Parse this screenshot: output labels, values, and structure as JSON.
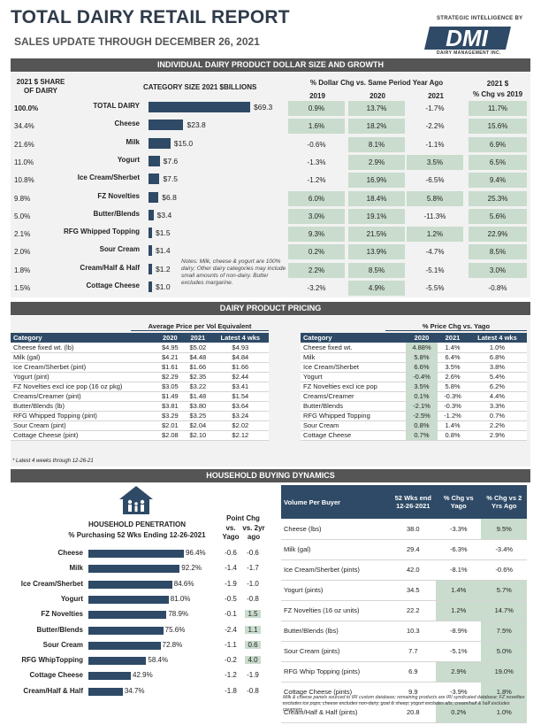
{
  "header": {
    "title": "TOTAL DAIRY RETAIL REPORT",
    "subtitle": "SALES UPDATE THROUGH DECEMBER 26, 2021",
    "logo_top": "STRATEGIC INTELLIGENCE BY",
    "logo_mark": "DMI",
    "logo_bottom": "DAIRY MANAGEMENT INC."
  },
  "section1": {
    "band": "INDIVIDUAL DAIRY PRODUCT DOLLAR SIZE AND GROWTH",
    "share_hdr": [
      "2021 $ SHARE",
      "OF DAIRY"
    ],
    "size_hdr": "CATEGORY SIZE 2021 $BILLIONS",
    "chg_hdr": "% Dollar Chg vs. Same Period Year Ago",
    "years": [
      "2019",
      "2020",
      "2021"
    ],
    "chg19_hdr": [
      "2021 $",
      "% Chg vs 2019"
    ],
    "note": "Notes: Milk, cheese & yogurt are 100% dairy; Other dairy categories may include small amounts of non-dairy. Butter excludes margarine.",
    "rows": [
      {
        "share": "100.0%",
        "name": "TOTAL DAIRY",
        "value": 69.3,
        "label": "$69.3",
        "c19": "0.9%",
        "c20": "13.7%",
        "c21": "-1.7%",
        "c2019": "11.7%",
        "g": [
          1,
          1,
          0,
          1
        ]
      },
      {
        "share": "34.4%",
        "name": "Cheese",
        "value": 23.8,
        "label": "$23.8",
        "c19": "1.6%",
        "c20": "18.2%",
        "c21": "-2.2%",
        "c2019": "15.6%",
        "g": [
          1,
          1,
          0,
          1
        ]
      },
      {
        "share": "21.6%",
        "name": "Milk",
        "value": 15.0,
        "label": "$15.0",
        "c19": "-0.6%",
        "c20": "8.1%",
        "c21": "-1.1%",
        "c2019": "6.9%",
        "g": [
          0,
          1,
          0,
          1
        ]
      },
      {
        "share": "11.0%",
        "name": "Yogurt",
        "value": 7.6,
        "label": "$7.6",
        "c19": "-1.3%",
        "c20": "2.9%",
        "c21": "3.5%",
        "c2019": "6.5%",
        "g": [
          0,
          1,
          1,
          1
        ]
      },
      {
        "share": "10.8%",
        "name": "Ice Cream/Sherbet",
        "value": 7.5,
        "label": "$7.5",
        "c19": "-1.2%",
        "c20": "16.9%",
        "c21": "-6.5%",
        "c2019": "9.4%",
        "g": [
          0,
          1,
          0,
          1
        ]
      },
      {
        "share": "9.8%",
        "name": "FZ Novelties",
        "value": 6.8,
        "label": "$6.8",
        "c19": "6.0%",
        "c20": "18.4%",
        "c21": "5.8%",
        "c2019": "25.3%",
        "g": [
          1,
          1,
          1,
          1
        ]
      },
      {
        "share": "5.0%",
        "name": "Butter/Blends",
        "value": 3.4,
        "label": "$3.4",
        "c19": "3.0%",
        "c20": "19.1%",
        "c21": "-11.3%",
        "c2019": "5.6%",
        "g": [
          1,
          1,
          0,
          1
        ]
      },
      {
        "share": "2.1%",
        "name": "RFG Whipped Topping",
        "value": 1.5,
        "label": "$1.5",
        "c19": "9.3%",
        "c20": "21.5%",
        "c21": "1.2%",
        "c2019": "22.9%",
        "g": [
          1,
          1,
          1,
          1
        ]
      },
      {
        "share": "2.0%",
        "name": "Sour Cream",
        "value": 1.4,
        "label": "$1.4",
        "c19": "0.2%",
        "c20": "13.9%",
        "c21": "-4.7%",
        "c2019": "8.5%",
        "g": [
          1,
          1,
          0,
          1
        ]
      },
      {
        "share": "1.8%",
        "name": "Cream/Half & Half",
        "value": 1.2,
        "label": "$1.2",
        "c19": "2.2%",
        "c20": "8.5%",
        "c21": "-5.1%",
        "c2019": "3.0%",
        "g": [
          1,
          1,
          0,
          1
        ]
      },
      {
        "share": "1.5%",
        "name": "Cottage Cheese",
        "value": 1.0,
        "label": "$1.0",
        "c19": "-3.2%",
        "c20": "4.9%",
        "c21": "-5.5%",
        "c2019": "-0.8%",
        "g": [
          0,
          1,
          0,
          0
        ]
      }
    ]
  },
  "section2": {
    "band": "DAIRY PRODUCT PRICING",
    "left_caption": "Average Price per Vol Equivalent",
    "left_cols": [
      "Category",
      "2020",
      "2021",
      "Latest 4 wks"
    ],
    "left_rows": [
      [
        "Cheese fixed wt. (lb)",
        "$4.95",
        "$5.02",
        "$4.93"
      ],
      [
        "Milk (gal)",
        "$4.21",
        "$4.48",
        "$4.84"
      ],
      [
        "Ice Cream/Sherbet (pint)",
        "$1.61",
        "$1.66",
        "$1.66"
      ],
      [
        "Yogurt (pint)",
        "$2.29",
        "$2.35",
        "$2.44"
      ],
      [
        "FZ Novelties excl ice pop (16 oz pkg)",
        "$3.05",
        "$3.22",
        "$3.41"
      ],
      [
        "Creams/Creamer (pint)",
        "$1.49",
        "$1.48",
        "$1.54"
      ],
      [
        "Butter/Blends (lb)",
        "$3.81",
        "$3.80",
        "$3.64"
      ],
      [
        "RFG Whipped Topping (pint)",
        "$3.29",
        "$3.25",
        "$3.24"
      ],
      [
        "Sour Cream (pint)",
        "$2.01",
        "$2.04",
        "$2.02"
      ],
      [
        "Cottage Cheese (pint)",
        "$2.08",
        "$2.10",
        "$2.12"
      ]
    ],
    "footnote": "* Latest 4 weeks through 12-26-21",
    "right_caption": "% Price Chg vs. Yago",
    "right_cols": [
      "Category",
      "2020",
      "2021",
      "Latest 4 wks"
    ],
    "right_rows": [
      [
        "Cheese fixed wt.",
        "4.88%",
        "1.4%",
        "1.0%"
      ],
      [
        "Milk",
        "5.8%",
        "6.4%",
        "6.8%"
      ],
      [
        "Ice Cream/Sherbet",
        "6.6%",
        "3.5%",
        "3.8%"
      ],
      [
        "Yogurt",
        "-0.4%",
        "2.6%",
        "5.4%"
      ],
      [
        "FZ Novelties excl ice pop",
        "3.5%",
        "5.8%",
        "6.2%"
      ],
      [
        "Creams/Creamer",
        "0.1%",
        "-0.3%",
        "4.4%"
      ],
      [
        "Butter/Blends",
        "-2.1%",
        "-0.3%",
        "3.3%"
      ],
      [
        "RFG Whipped Topping",
        "-2.5%",
        "-1.2%",
        "0.7%"
      ],
      [
        "Sour Cream",
        "0.8%",
        "1.4%",
        "2.2%"
      ],
      [
        "Cottage Cheese",
        "0.7%",
        "0.8%",
        "2.9%"
      ]
    ]
  },
  "section3": {
    "band": "HOUSEHOLD BUYING DYNAMICS",
    "hp_title": [
      "HOUSEHOLD PENETRATION",
      "% Purchasing 52 Wks Ending 12-26-2021"
    ],
    "pt_hdr": "Point Chg",
    "pt_cols": [
      [
        "vs.",
        "Yago"
      ],
      [
        "vs. 2yr",
        "ago"
      ]
    ],
    "hp_rows": [
      {
        "name": "Cheese",
        "value": 96.4,
        "label": "96.4%",
        "yago": "-0.6",
        "y2": "-0.6"
      },
      {
        "name": "Milk",
        "value": 92.2,
        "label": "92.2%",
        "yago": "-1.4",
        "y2": "-1.7"
      },
      {
        "name": "Ice Cream/Sherbet",
        "value": 84.6,
        "label": "84.6%",
        "yago": "-1.9",
        "y2": "-1.0"
      },
      {
        "name": "Yogurt",
        "value": 81.0,
        "label": "81.0%",
        "yago": "-0.5",
        "y2": "-0.8"
      },
      {
        "name": "FZ Novelties",
        "value": 78.9,
        "label": "78.9%",
        "yago": "-0.1",
        "y2": "1.5"
      },
      {
        "name": "Butter/Blends",
        "value": 75.6,
        "label": "75.6%",
        "yago": "-2.4",
        "y2": "1.1"
      },
      {
        "name": "Sour Cream",
        "value": 72.8,
        "label": "72.8%",
        "yago": "-1.1",
        "y2": "0.6"
      },
      {
        "name": "RFG WhipTopping",
        "value": 58.4,
        "label": "58.4%",
        "yago": "-0.2",
        "y2": "4.0"
      },
      {
        "name": "Cottage Cheese",
        "value": 42.9,
        "label": "42.9%",
        "yago": "-1.2",
        "y2": "-1.9"
      },
      {
        "name": "Cream/Half & Half",
        "value": 34.7,
        "label": "34.7%",
        "yago": "-1.8",
        "y2": "-0.8"
      }
    ],
    "vol_cols": [
      "Volume Per Buyer",
      "52 Wks end 12-26-2021",
      "% Chg vs Yago",
      "% Chg vs 2 Yrs Ago"
    ],
    "vol_rows": [
      [
        "Cheese (lbs)",
        "38.0",
        "-3.3%",
        "9.5%"
      ],
      [
        "Milk (gal)",
        "29.4",
        "-6.3%",
        "-3.4%"
      ],
      [
        "Ice Cream/Sherbet (pints)",
        "42.0",
        "-8.1%",
        "-0.6%"
      ],
      [
        "Yogurt (pints)",
        "34.5",
        "1.4%",
        "5.7%"
      ],
      [
        "FZ Novelties (16 oz units)",
        "22.2",
        "1.2%",
        "14.7%"
      ],
      [
        "Butter/Blends (lbs)",
        "10.3",
        "-8.9%",
        "7.5%"
      ],
      [
        "Sour Cream (pints)",
        "7.7",
        "-5.1%",
        "5.0%"
      ],
      [
        "RFG Whip Topping (pints)",
        "6.9",
        "2.9%",
        "19.0%"
      ],
      [
        "Cottage Cheese (pints)",
        "9.9",
        "-3.9%",
        "1.8%"
      ],
      [
        "Cream/Half & Half (pints)",
        "20.8",
        "0.2%",
        "1.0%"
      ]
    ],
    "vol_green": [
      [
        0,
        0,
        1
      ],
      [
        0,
        0,
        0
      ],
      [
        0,
        0,
        0
      ],
      [
        0,
        1,
        1
      ],
      [
        0,
        1,
        1
      ],
      [
        0,
        0,
        1
      ],
      [
        0,
        0,
        1
      ],
      [
        0,
        1,
        1
      ],
      [
        0,
        0,
        1
      ],
      [
        0,
        1,
        1
      ]
    ],
    "footnote": "Milk & cheese panels sourced to IRI custom database; remaining products are IRI syndicated database; FZ novelties excludes ice pops; cheese excludes non-dairy, goat & sheep; yogurt excludes alts; cream/half & half excludes creamers"
  }
}
